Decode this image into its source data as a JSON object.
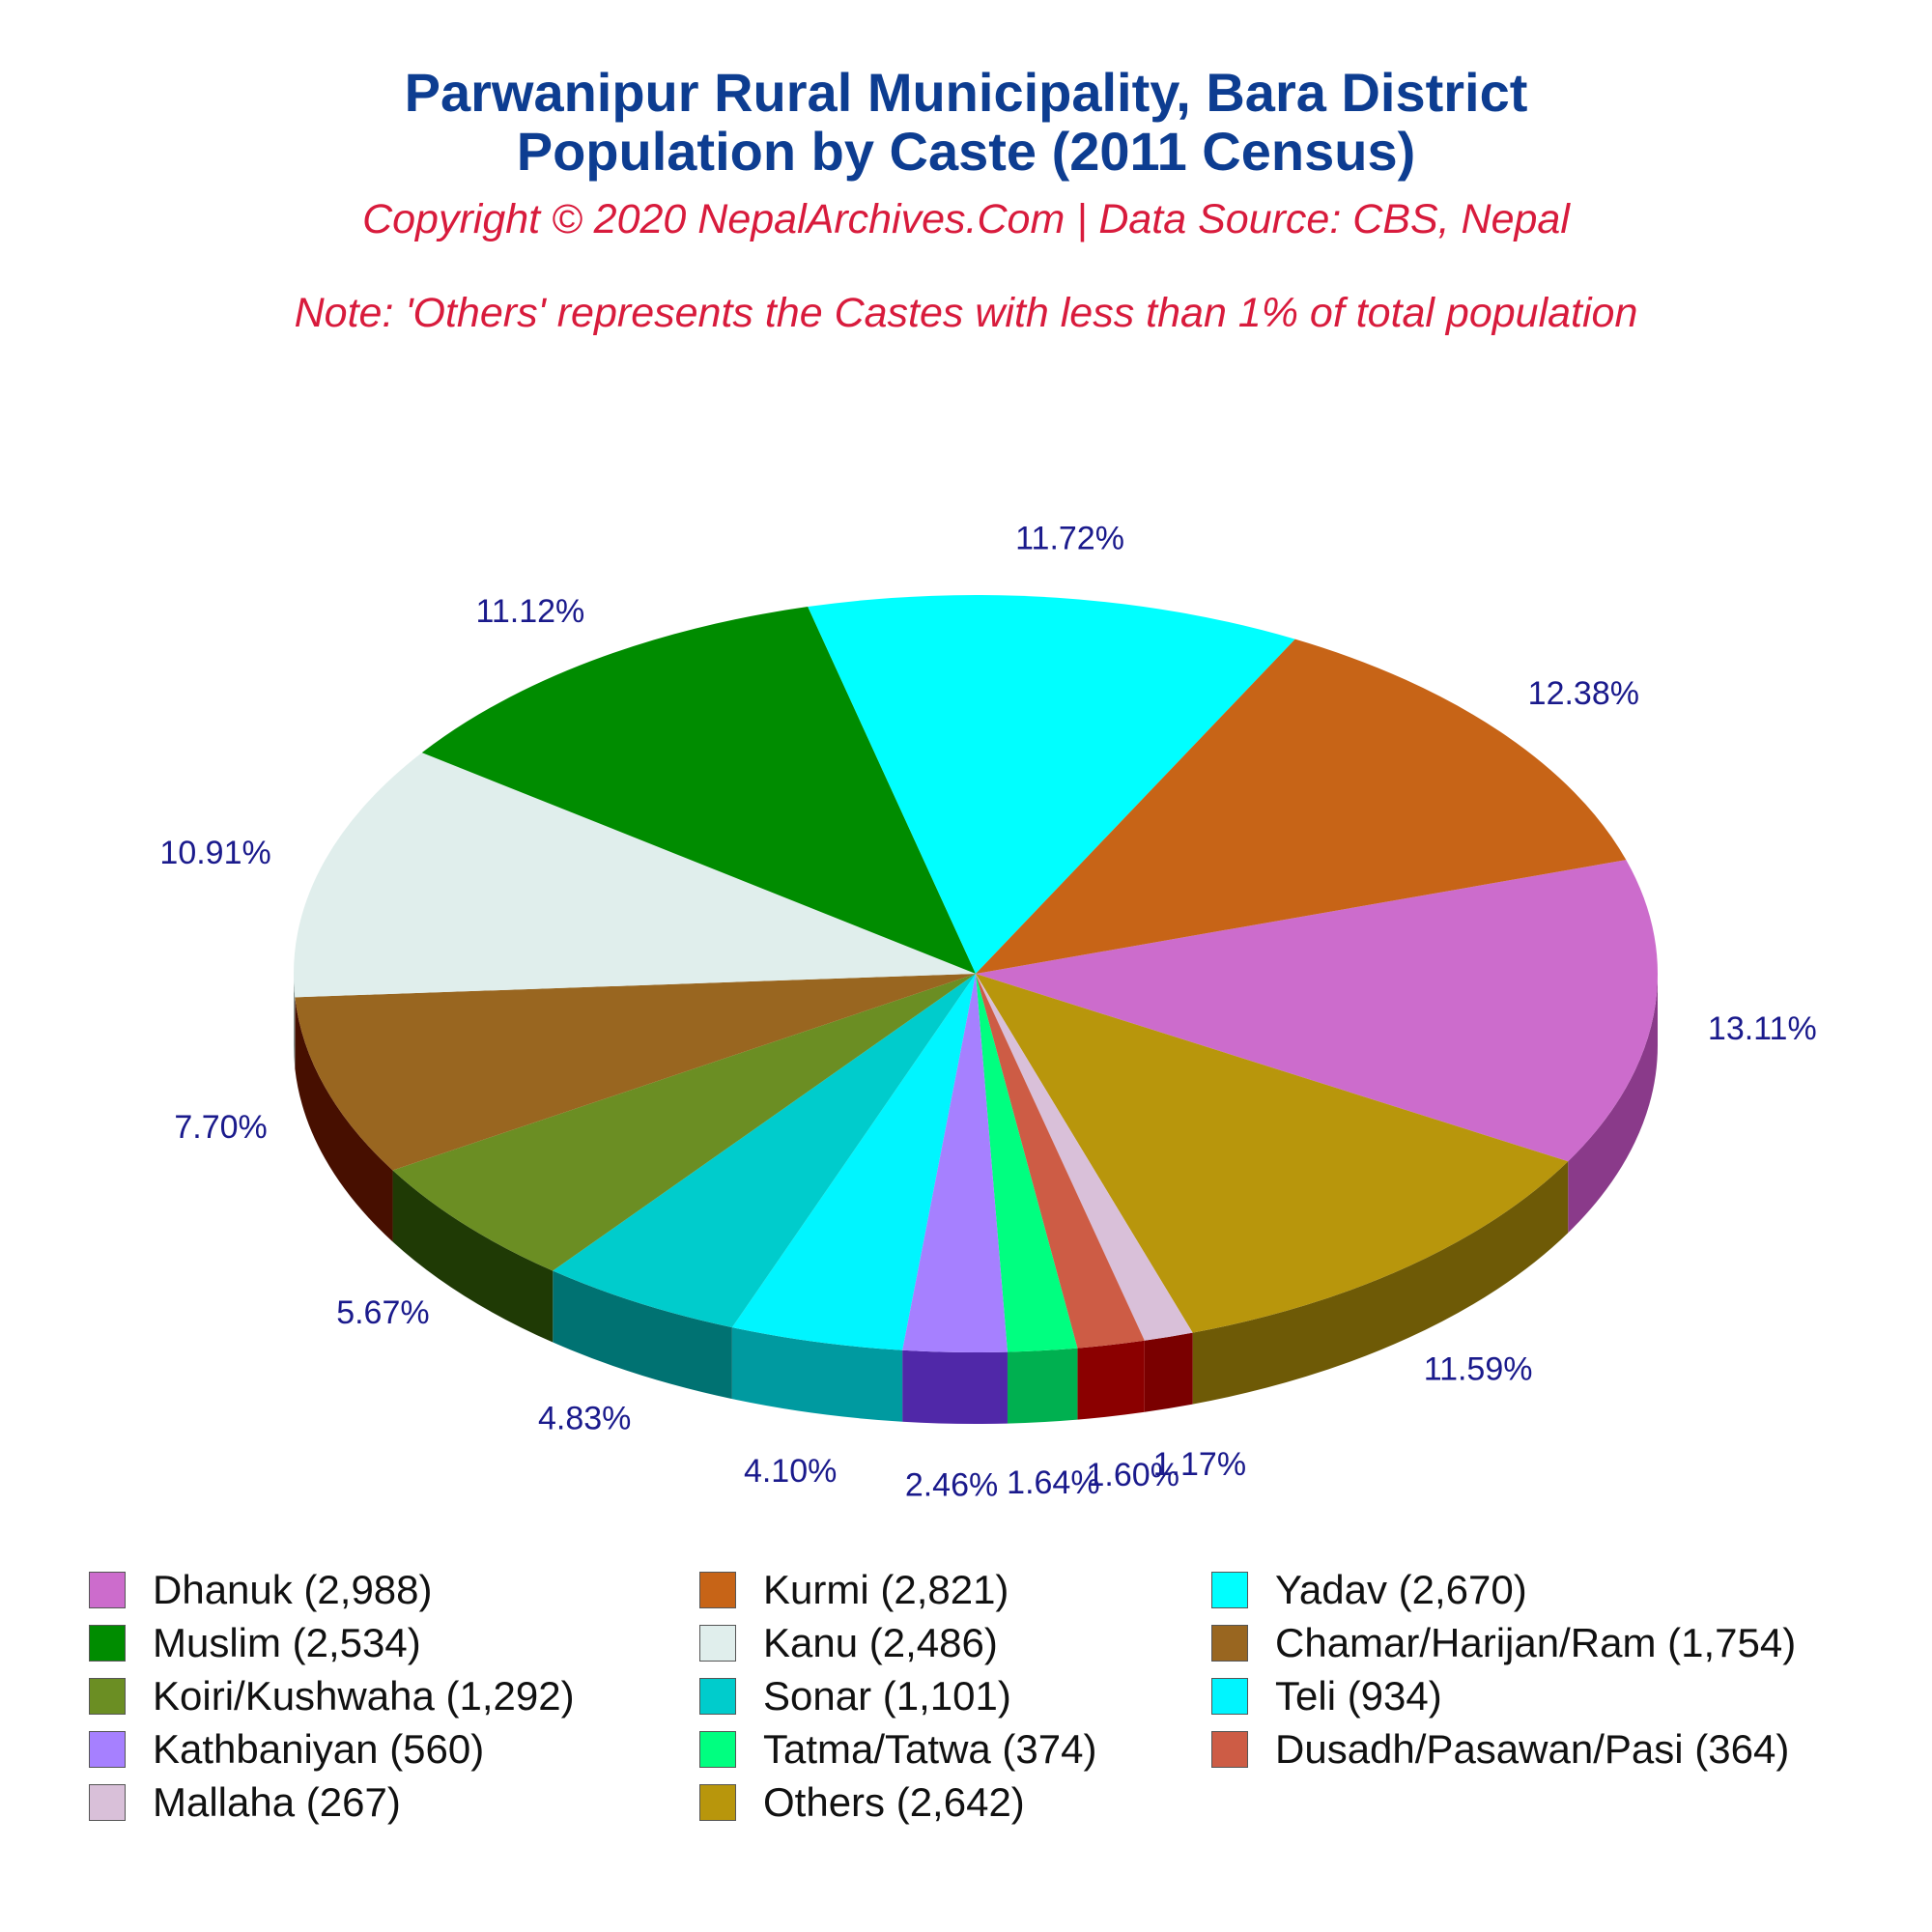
{
  "title": {
    "line1": "Parwanipur Rural Municipality, Bara District",
    "line2": "Population by Caste (2011 Census)"
  },
  "copyright": "Copyright © 2020 NepalArchives.Com | Data Source: CBS, Nepal",
  "note": "Note: 'Others' represents the Castes with less than 1% of total population",
  "chart_data": {
    "type": "pie",
    "style": "3d",
    "title": "Parwanipur Rural Municipality, Bara District Population by Caste (2011 Census)",
    "legend_position": "bottom",
    "slices": [
      {
        "label": "Dhanuk (2,988)",
        "value": 2988,
        "pct": "13.11%",
        "color": "#cc6ccc",
        "side": "#8a3a8a"
      },
      {
        "label": "Others (2,642)",
        "value": 2642,
        "pct": "11.59%",
        "color": "#b8960c",
        "side": "#6e5a06"
      },
      {
        "label": "Mallaha (267)",
        "value": 267,
        "pct": "1.17%",
        "color": "#d9c0d9",
        "side": "#7a0000"
      },
      {
        "label": "Dusadh/Pasawan/Pasi (364)",
        "value": 364,
        "pct": "1.60%",
        "color": "#cd5c45",
        "side": "#8b0000"
      },
      {
        "label": "Tatma/Tatwa (374)",
        "value": 374,
        "pct": "1.64%",
        "color": "#00ff80",
        "side": "#00b050"
      },
      {
        "label": "Kathbaniyan (560)",
        "value": 560,
        "pct": "2.46%",
        "color": "#a680ff",
        "side": "#5028a8"
      },
      {
        "label": "Teli (934)",
        "value": 934,
        "pct": "4.10%",
        "color": "#00f5ff",
        "side": "#009aa0"
      },
      {
        "label": "Sonar (1,101)",
        "value": 1101,
        "pct": "4.83%",
        "color": "#00cccc",
        "side": "#007272"
      },
      {
        "label": "Koiri/Kushwaha (1,292)",
        "value": 1292,
        "pct": "5.67%",
        "color": "#6b8e23",
        "side": "#1f3a05"
      },
      {
        "label": "Chamar/Harijan/Ram (1,754)",
        "value": 1754,
        "pct": "7.70%",
        "color": "#996620",
        "side": "#470f00"
      },
      {
        "label": "Kanu (2,486)",
        "value": 2486,
        "pct": "10.91%",
        "color": "#e0eeec",
        "side": "#889693"
      },
      {
        "label": "Muslim (2,534)",
        "value": 2534,
        "pct": "11.12%",
        "color": "#008c00",
        "side": "#003000"
      },
      {
        "label": "Yadav (2,670)",
        "value": 2670,
        "pct": "11.72%",
        "color": "#00ffff",
        "side": "#009999"
      },
      {
        "label": "Kurmi (2,821)",
        "value": 2821,
        "pct": "12.38%",
        "color": "#c76417",
        "side": "#6e3200"
      }
    ],
    "legend": [
      {
        "label": "Dhanuk (2,988)",
        "color": "#cc6ccc"
      },
      {
        "label": "Kurmi (2,821)",
        "color": "#c76417"
      },
      {
        "label": "Yadav (2,670)",
        "color": "#00ffff"
      },
      {
        "label": "Muslim (2,534)",
        "color": "#008c00"
      },
      {
        "label": "Kanu (2,486)",
        "color": "#e0eeec"
      },
      {
        "label": "Chamar/Harijan/Ram (1,754)",
        "color": "#996620"
      },
      {
        "label": "Koiri/Kushwaha (1,292)",
        "color": "#6b8e23"
      },
      {
        "label": "Sonar (1,101)",
        "color": "#00cccc"
      },
      {
        "label": "Teli (934)",
        "color": "#00f5ff"
      },
      {
        "label": "Kathbaniyan (560)",
        "color": "#a680ff"
      },
      {
        "label": "Tatma/Tatwa (374)",
        "color": "#00ff80"
      },
      {
        "label": "Dusadh/Pasawan/Pasi (364)",
        "color": "#cd5c45"
      },
      {
        "label": "Mallaha (267)",
        "color": "#d9c0d9"
      },
      {
        "label": "Others (2,642)",
        "color": "#b8960c"
      }
    ]
  }
}
